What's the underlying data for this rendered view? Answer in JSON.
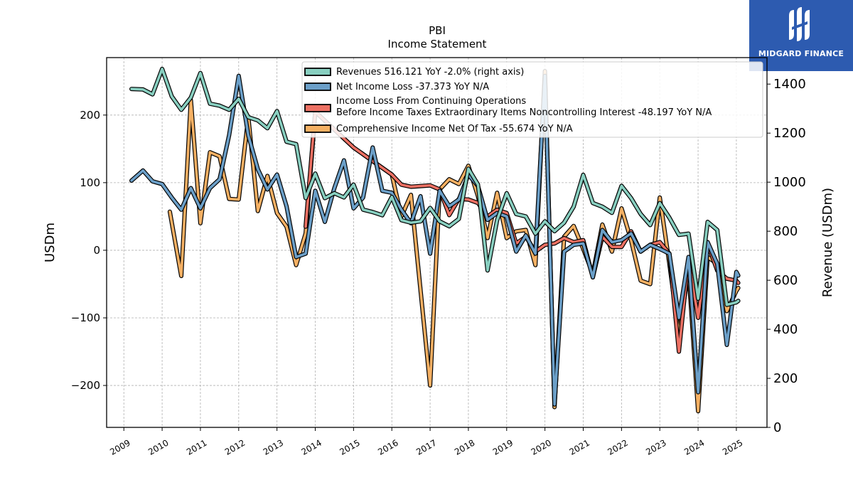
{
  "brand": {
    "name": "MIDGARD FINANCE",
    "bg": "#2d5bb0"
  },
  "chart_data": {
    "type": "line",
    "title": "PBI",
    "subtitle": "Income Statement",
    "ylabel": "USDm",
    "ylabel_right": "Revenue (USDm)",
    "ylim": [
      -262,
      285
    ],
    "ylim_right": [
      0,
      1508
    ],
    "yticks": [
      -200,
      -100,
      0,
      100,
      200
    ],
    "yticks_right": [
      0,
      200,
      400,
      600,
      800,
      1000,
      1200,
      1400
    ],
    "xlim": [
      2008.55,
      2025.8
    ],
    "xticks": [
      "2009",
      "2010",
      "2011",
      "2012",
      "2013",
      "2014",
      "2015",
      "2016",
      "2017",
      "2018",
      "2019",
      "2020",
      "2021",
      "2022",
      "2023",
      "2024",
      "2025"
    ],
    "grid": true,
    "legend": "top-right",
    "series": [
      {
        "name": "Revenues  516.121 YoY -2.0% (right axis)",
        "axis": "right",
        "color": "#88cfc0",
        "points": [
          [
            2009.2,
            1380
          ],
          [
            2009.5,
            1378
          ],
          [
            2009.75,
            1358
          ],
          [
            2010.0,
            1462
          ],
          [
            2010.25,
            1350
          ],
          [
            2010.5,
            1295
          ],
          [
            2010.75,
            1345
          ],
          [
            2011.0,
            1445
          ],
          [
            2011.25,
            1320
          ],
          [
            2011.5,
            1312
          ],
          [
            2011.75,
            1295
          ],
          [
            2012.0,
            1340
          ],
          [
            2012.25,
            1265
          ],
          [
            2012.5,
            1252
          ],
          [
            2012.75,
            1220
          ],
          [
            2013.0,
            1290
          ],
          [
            2013.25,
            1165
          ],
          [
            2013.5,
            1155
          ],
          [
            2013.75,
            935
          ],
          [
            2014.0,
            1035
          ],
          [
            2014.25,
            935
          ],
          [
            2014.5,
            955
          ],
          [
            2014.75,
            938
          ],
          [
            2015.0,
            990
          ],
          [
            2015.25,
            888
          ],
          [
            2015.5,
            878
          ],
          [
            2015.75,
            865
          ],
          [
            2016.0,
            940
          ],
          [
            2016.25,
            845
          ],
          [
            2016.5,
            835
          ],
          [
            2016.75,
            840
          ],
          [
            2017.0,
            895
          ],
          [
            2017.25,
            840
          ],
          [
            2017.5,
            820
          ],
          [
            2017.75,
            850
          ],
          [
            2018.0,
            1055
          ],
          [
            2018.25,
            990
          ],
          [
            2018.5,
            640
          ],
          [
            2018.75,
            845
          ],
          [
            2019.0,
            955
          ],
          [
            2019.25,
            870
          ],
          [
            2019.5,
            860
          ],
          [
            2019.75,
            790
          ],
          [
            2020.0,
            840
          ],
          [
            2020.25,
            800
          ],
          [
            2020.5,
            835
          ],
          [
            2020.75,
            900
          ],
          [
            2021.0,
            1030
          ],
          [
            2021.25,
            915
          ],
          [
            2021.5,
            900
          ],
          [
            2021.75,
            875
          ],
          [
            2022.0,
            985
          ],
          [
            2022.25,
            935
          ],
          [
            2022.5,
            870
          ],
          [
            2022.75,
            825
          ],
          [
            2023.0,
            915
          ],
          [
            2023.25,
            855
          ],
          [
            2023.5,
            785
          ],
          [
            2023.75,
            790
          ],
          [
            2024.0,
            525
          ],
          [
            2024.25,
            838
          ],
          [
            2024.5,
            805
          ],
          [
            2024.75,
            500
          ],
          [
            2025.0,
            510
          ],
          [
            2025.05,
            516
          ]
        ]
      },
      {
        "name": "Net Income Loss  -37.373 YoY N/A",
        "axis": "left",
        "color": "#6b9fc8",
        "points": [
          [
            2009.2,
            103
          ],
          [
            2009.5,
            118
          ],
          [
            2009.75,
            102
          ],
          [
            2010.0,
            98
          ],
          [
            2010.25,
            78
          ],
          [
            2010.5,
            60
          ],
          [
            2010.75,
            92
          ],
          [
            2011.0,
            62
          ],
          [
            2011.25,
            92
          ],
          [
            2011.5,
            105
          ],
          [
            2011.75,
            170
          ],
          [
            2012.0,
            258
          ],
          [
            2012.25,
            170
          ],
          [
            2012.5,
            120
          ],
          [
            2012.75,
            90
          ],
          [
            2013.0,
            112
          ],
          [
            2013.25,
            65
          ],
          [
            2013.5,
            -10
          ],
          [
            2013.75,
            -5
          ],
          [
            2014.0,
            88
          ],
          [
            2014.25,
            42
          ],
          [
            2014.5,
            92
          ],
          [
            2014.75,
            133
          ],
          [
            2015.0,
            62
          ],
          [
            2015.25,
            78
          ],
          [
            2015.5,
            152
          ],
          [
            2015.75,
            88
          ],
          [
            2016.0,
            85
          ],
          [
            2016.25,
            60
          ],
          [
            2016.5,
            40
          ],
          [
            2016.75,
            80
          ],
          [
            2017.0,
            -5
          ],
          [
            2017.25,
            88
          ],
          [
            2017.5,
            65
          ],
          [
            2017.75,
            75
          ],
          [
            2018.0,
            112
          ],
          [
            2018.25,
            95
          ],
          [
            2018.5,
            45
          ],
          [
            2018.75,
            55
          ],
          [
            2019.0,
            50
          ],
          [
            2019.25,
            -2
          ],
          [
            2019.5,
            22
          ],
          [
            2019.75,
            -5
          ],
          [
            2020.0,
            258
          ],
          [
            2020.25,
            -228
          ],
          [
            2020.5,
            -2
          ],
          [
            2020.75,
            8
          ],
          [
            2021.0,
            10
          ],
          [
            2021.25,
            -40
          ],
          [
            2021.5,
            30
          ],
          [
            2021.75,
            12
          ],
          [
            2022.0,
            15
          ],
          [
            2022.25,
            25
          ],
          [
            2022.5,
            -2
          ],
          [
            2022.75,
            8
          ],
          [
            2023.0,
            2
          ],
          [
            2023.25,
            -5
          ],
          [
            2023.5,
            -100
          ],
          [
            2023.75,
            -10
          ],
          [
            2024.0,
            -210
          ],
          [
            2024.25,
            12
          ],
          [
            2024.5,
            -20
          ],
          [
            2024.75,
            -140
          ],
          [
            2025.0,
            -32
          ],
          [
            2025.05,
            -37.373
          ]
        ]
      },
      {
        "name": "Income Loss From Continuing Operations\nBefore Income Taxes Extraordinary Items Noncontrolling Interest  -48.197 YoY N/A",
        "axis": "left",
        "color": "#ec7063",
        "points": [
          [
            2013.75,
            35
          ],
          [
            2014.0,
            205
          ],
          [
            2015.0,
            152
          ],
          [
            2016.0,
            112
          ],
          [
            2016.25,
            97
          ],
          [
            2016.5,
            94
          ],
          [
            2017.0,
            96
          ],
          [
            2017.25,
            90
          ],
          [
            2017.5,
            52
          ],
          [
            2017.75,
            76
          ],
          [
            2018.0,
            75
          ],
          [
            2018.25,
            70
          ],
          [
            2018.5,
            50
          ],
          [
            2018.75,
            60
          ],
          [
            2019.0,
            55
          ],
          [
            2019.25,
            10
          ],
          [
            2019.5,
            20
          ],
          [
            2019.75,
            -2
          ],
          [
            2020.0,
            8
          ],
          [
            2020.25,
            10
          ],
          [
            2020.5,
            18
          ],
          [
            2020.75,
            12
          ],
          [
            2021.0,
            15
          ],
          [
            2021.25,
            -40
          ],
          [
            2021.5,
            20
          ],
          [
            2021.75,
            5
          ],
          [
            2022.0,
            5
          ],
          [
            2022.25,
            28
          ],
          [
            2022.5,
            -2
          ],
          [
            2022.75,
            8
          ],
          [
            2023.0,
            12
          ],
          [
            2023.25,
            -5
          ],
          [
            2023.5,
            -150
          ],
          [
            2023.75,
            -12
          ],
          [
            2024.0,
            -100
          ],
          [
            2024.25,
            10
          ],
          [
            2024.5,
            -30
          ],
          [
            2024.75,
            -42
          ],
          [
            2025.0,
            -45
          ],
          [
            2025.05,
            -48.197
          ]
        ]
      },
      {
        "name": "Comprehensive Income Net Of Tax  -55.674 YoY N/A",
        "axis": "left",
        "color": "#f5b063",
        "points": [
          [
            2010.2,
            57
          ],
          [
            2010.5,
            -38
          ],
          [
            2010.75,
            222
          ],
          [
            2011.0,
            40
          ],
          [
            2011.25,
            145
          ],
          [
            2011.5,
            139
          ],
          [
            2011.75,
            76
          ],
          [
            2012.0,
            75
          ],
          [
            2012.25,
            197
          ],
          [
            2012.5,
            58
          ],
          [
            2012.75,
            110
          ],
          [
            2013.0,
            55
          ],
          [
            2013.25,
            35
          ],
          [
            2013.5,
            -22
          ],
          [
            2013.75,
            25
          ],
          [
            2014.0,
            205
          ],
          [
            2015.0,
            152
          ],
          [
            2016.0,
            112
          ],
          [
            2016.25,
            50
          ],
          [
            2016.5,
            82
          ],
          [
            2017.0,
            -200
          ],
          [
            2017.25,
            90
          ],
          [
            2017.5,
            105
          ],
          [
            2017.75,
            98
          ],
          [
            2018.0,
            125
          ],
          [
            2018.25,
            80
          ],
          [
            2018.5,
            18
          ],
          [
            2018.75,
            85
          ],
          [
            2019.0,
            18
          ],
          [
            2019.25,
            28
          ],
          [
            2019.5,
            30
          ],
          [
            2019.75,
            -22
          ],
          [
            2020.0,
            265
          ],
          [
            2020.25,
            -232
          ],
          [
            2020.5,
            20
          ],
          [
            2020.75,
            36
          ],
          [
            2021.0,
            2
          ],
          [
            2021.25,
            -35
          ],
          [
            2021.5,
            38
          ],
          [
            2021.75,
            -2
          ],
          [
            2022.0,
            62
          ],
          [
            2022.25,
            15
          ],
          [
            2022.5,
            -45
          ],
          [
            2022.75,
            -50
          ],
          [
            2023.0,
            78
          ],
          [
            2023.25,
            -20
          ],
          [
            2023.5,
            -125
          ],
          [
            2023.75,
            -30
          ],
          [
            2024.0,
            -238
          ],
          [
            2024.25,
            -10
          ],
          [
            2024.5,
            -20
          ],
          [
            2024.75,
            -90
          ],
          [
            2025.0,
            -60
          ],
          [
            2025.05,
            -55.674
          ]
        ]
      }
    ]
  }
}
